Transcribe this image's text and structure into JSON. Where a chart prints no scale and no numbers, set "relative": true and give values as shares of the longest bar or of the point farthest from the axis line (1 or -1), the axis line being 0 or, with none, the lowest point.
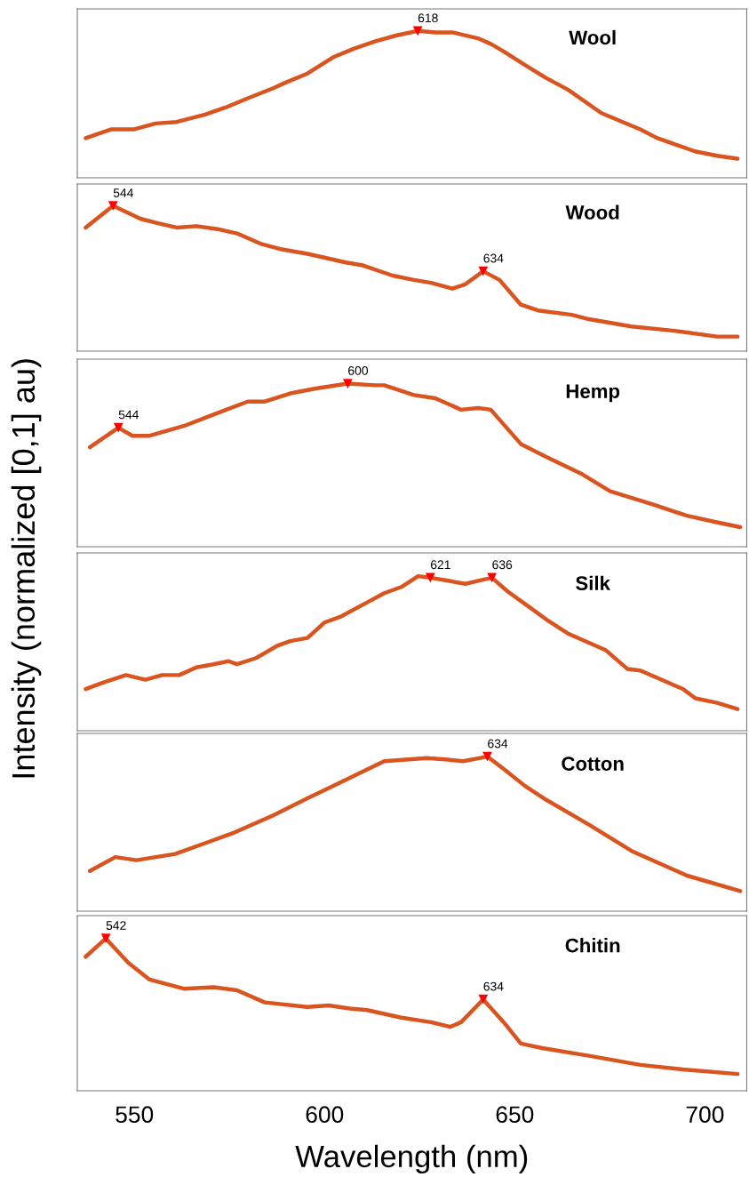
{
  "chart_data": [
    {
      "type": "line",
      "title": "Wool",
      "ylabel": "Intensity (normalized [0,1] au)",
      "relative": true,
      "xlim": [
        535,
        711
      ],
      "tick_labels": false,
      "annotations": [
        {
          "text": "618",
          "x": 624.5,
          "y": 1.0
        }
      ],
      "series": [
        {
          "type": "line",
          "color": "#d9541e",
          "x": [
            537.2,
            544.0,
            550.0,
            555.6,
            561.1,
            568.6,
            574.1,
            579.7,
            586.5,
            589.9,
            595.5,
            602.2,
            607.8,
            613.4,
            619.0,
            624.5,
            629.2,
            633.6,
            640.3,
            643.8,
            647.1,
            652.6,
            658.2,
            664.0,
            672.8,
            683.0,
            687.5,
            697.4,
            703.2,
            708.6
          ],
          "values": [
            0.27,
            0.33,
            0.33,
            0.37,
            0.38,
            0.43,
            0.48,
            0.54,
            0.61,
            0.65,
            0.71,
            0.82,
            0.88,
            0.93,
            0.97,
            1.0,
            0.99,
            0.99,
            0.95,
            0.91,
            0.86,
            0.77,
            0.68,
            0.6,
            0.44,
            0.33,
            0.27,
            0.18,
            0.15,
            0.13
          ]
        },
        {
          "type": "scatter",
          "color": "#ff0000",
          "marker": "triangle",
          "x": [
            624.5
          ],
          "values": [
            1.0
          ]
        }
      ]
    },
    {
      "type": "line",
      "title": "Wood",
      "relative": true,
      "xlim": [
        535,
        711
      ],
      "tick_labels": false,
      "annotations": [
        {
          "text": "544",
          "x": 544.4,
          "y": 1.0
        },
        {
          "text": "634",
          "x": 641.7,
          "y": 0.55
        }
      ],
      "series": [
        {
          "type": "line",
          "color": "#d9541e",
          "x": [
            537.2,
            544.4,
            551.7,
            556.2,
            561.3,
            566.3,
            571.9,
            577.0,
            583.1,
            588.8,
            595.5,
            598.9,
            605.6,
            610.1,
            617.9,
            623.5,
            628.0,
            633.6,
            637.0,
            641.7,
            646.0,
            651.6,
            656.1,
            665.0,
            669.5,
            680.7,
            692.0,
            703.2,
            708.6
          ],
          "values": [
            0.85,
            1.0,
            0.91,
            0.88,
            0.85,
            0.86,
            0.84,
            0.81,
            0.74,
            0.7,
            0.67,
            0.65,
            0.61,
            0.59,
            0.52,
            0.49,
            0.47,
            0.43,
            0.46,
            0.55,
            0.49,
            0.32,
            0.28,
            0.25,
            0.22,
            0.17,
            0.14,
            0.1,
            0.1
          ]
        },
        {
          "type": "scatter",
          "color": "#ff0000",
          "marker": "triangle",
          "x": [
            544.4,
            641.7
          ],
          "values": [
            1.0,
            0.55
          ]
        }
      ]
    },
    {
      "type": "line",
      "title": "Hemp",
      "relative": true,
      "xlim": [
        535,
        711
      ],
      "tick_labels": false,
      "annotations": [
        {
          "text": "544",
          "x": 545.8,
          "y": 0.73
        },
        {
          "text": "600",
          "x": 606.1,
          "y": 1.0
        }
      ],
      "series": [
        {
          "type": "line",
          "color": "#d9541e",
          "x": [
            538.3,
            545.8,
            549.5,
            554.0,
            563.0,
            570.8,
            579.8,
            584.3,
            591.0,
            597.7,
            606.1,
            613.4,
            615.7,
            623.5,
            629.1,
            635.9,
            640.4,
            643.7,
            651.6,
            658.3,
            667.3,
            675.1,
            686.3,
            695.3,
            703.1,
            709.3
          ],
          "values": [
            0.61,
            0.73,
            0.68,
            0.68,
            0.74,
            0.81,
            0.89,
            0.89,
            0.94,
            0.97,
            1.0,
            0.99,
            0.99,
            0.93,
            0.91,
            0.84,
            0.85,
            0.84,
            0.63,
            0.55,
            0.45,
            0.34,
            0.26,
            0.19,
            0.15,
            0.12
          ]
        },
        {
          "type": "scatter",
          "color": "#ff0000",
          "marker": "triangle",
          "x": [
            545.8,
            606.1
          ],
          "values": [
            0.73,
            1.0
          ]
        }
      ]
    },
    {
      "type": "line",
      "title": "Silk",
      "relative": true,
      "xlim": [
        535,
        711
      ],
      "tick_labels": false,
      "annotations": [
        {
          "text": "621",
          "x": 627.8,
          "y": 0.99
        },
        {
          "text": "636",
          "x": 644.0,
          "y": 0.99
        }
      ],
      "series": [
        {
          "type": "line",
          "color": "#d9541e",
          "x": [
            537.2,
            541.6,
            547.8,
            552.9,
            557.3,
            561.8,
            566.3,
            570.8,
            574.7,
            577.0,
            582.0,
            587.6,
            591.0,
            595.5,
            600.0,
            604.4,
            611.2,
            615.7,
            620.2,
            624.6,
            627.8,
            632.5,
            637.0,
            640.4,
            644.0,
            648.2,
            652.7,
            658.3,
            663.9,
            674.0,
            679.6,
            683.0,
            694.2,
            697.5,
            703.2,
            708.6
          ],
          "values": [
            0.27,
            0.31,
            0.36,
            0.33,
            0.36,
            0.36,
            0.41,
            0.43,
            0.45,
            0.43,
            0.47,
            0.55,
            0.58,
            0.6,
            0.7,
            0.74,
            0.83,
            0.89,
            0.93,
            1.0,
            0.99,
            0.97,
            0.95,
            0.97,
            0.99,
            0.9,
            0.82,
            0.72,
            0.63,
            0.52,
            0.4,
            0.39,
            0.27,
            0.21,
            0.18,
            0.14
          ]
        },
        {
          "type": "scatter",
          "color": "#ff0000",
          "marker": "triangle",
          "x": [
            627.8,
            644.0
          ],
          "values": [
            0.99,
            0.99
          ]
        }
      ]
    },
    {
      "type": "line",
      "title": "Cotton",
      "relative": true,
      "xlim": [
        535,
        711
      ],
      "tick_labels": false,
      "annotations": [
        {
          "text": "634",
          "x": 642.8,
          "y": 1.0
        }
      ],
      "series": [
        {
          "type": "line",
          "color": "#d9541e",
          "x": [
            538.3,
            545.0,
            550.6,
            560.7,
            568.6,
            576.4,
            586.5,
            595.5,
            602.2,
            615.7,
            626.9,
            632.5,
            636.4,
            642.8,
            647.1,
            652.7,
            658.3,
            669.5,
            680.7,
            695.3,
            709.3
          ],
          "values": [
            0.26,
            0.35,
            0.33,
            0.37,
            0.44,
            0.51,
            0.62,
            0.73,
            0.81,
            0.97,
            0.99,
            0.98,
            0.97,
            1.0,
            0.92,
            0.81,
            0.72,
            0.56,
            0.39,
            0.23,
            0.13
          ]
        },
        {
          "type": "scatter",
          "color": "#ff0000",
          "marker": "triangle",
          "x": [
            642.8
          ],
          "values": [
            1.0
          ]
        }
      ]
    },
    {
      "type": "line",
      "title": "Chitin",
      "xlabel": "Wavelength (nm)",
      "relative": true,
      "xlim": [
        535,
        711
      ],
      "xticks": [
        550,
        600,
        650,
        700
      ],
      "tick_labels": "x",
      "annotations": [
        {
          "text": "542",
          "x": 542.5,
          "y": 1.0
        },
        {
          "text": "634",
          "x": 641.7,
          "y": 0.6
        }
      ],
      "series": [
        {
          "type": "line",
          "color": "#d9541e",
          "x": [
            537.2,
            542.5,
            548.4,
            554.0,
            563.0,
            570.8,
            577.0,
            584.3,
            595.5,
            601.1,
            606.7,
            611.2,
            620.2,
            628.0,
            633.1,
            635.9,
            641.7,
            647.1,
            651.6,
            657.2,
            669.5,
            683.0,
            694.2,
            708.6
          ],
          "values": [
            0.88,
            1.0,
            0.84,
            0.73,
            0.67,
            0.68,
            0.66,
            0.58,
            0.55,
            0.56,
            0.54,
            0.53,
            0.48,
            0.45,
            0.42,
            0.45,
            0.6,
            0.45,
            0.31,
            0.28,
            0.23,
            0.17,
            0.14,
            0.11
          ]
        },
        {
          "type": "scatter",
          "color": "#ff0000",
          "marker": "triangle",
          "x": [
            542.5,
            641.7
          ],
          "values": [
            1.0,
            0.6
          ]
        }
      ]
    }
  ]
}
